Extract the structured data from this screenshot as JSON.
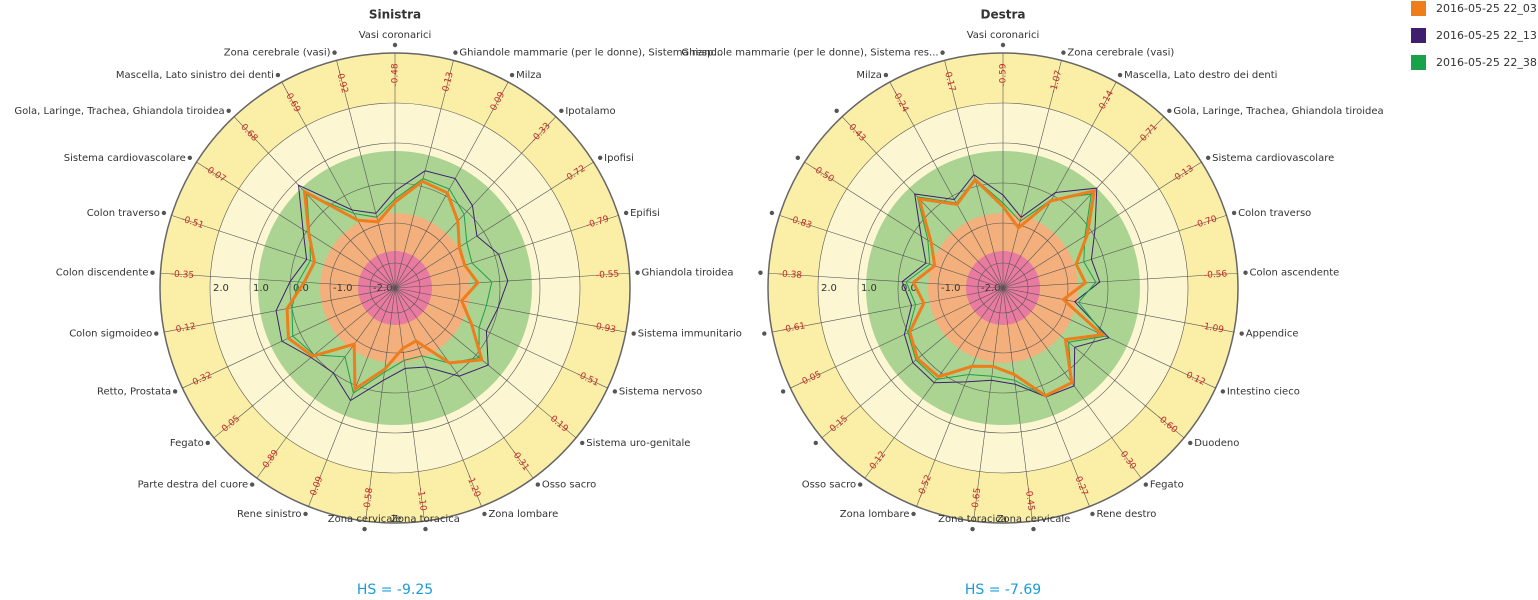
{
  "chart_data": [
    {
      "type": "radar",
      "title": "Sinistra",
      "annotation": "HS = -9.25",
      "categories": [
        "Vasi coronarici",
        "Ghiandole mammarie (per le donne), Sistema resp...",
        "Milza",
        "Ipotalamo",
        "Ipofisi",
        "Epifisi",
        "Ghiandola tiroidea",
        "Sistema immunitario",
        "Sistema nervoso",
        "Sistema uro-genitale",
        "Osso sacro",
        "Zona lombare",
        "Zona toracica",
        "Zona cervicale",
        "Rene sinistro",
        "Parte destra del cuore",
        "Fegato",
        "Retto, Prostata",
        "Colon sigmoideo",
        "Colon discendente",
        "Colon traverso",
        "Sistema cardiovascolare",
        "Gola, Laringe, Trachea, Ghiandola tiroidea",
        "Mascella, Lato sinistro dei denti",
        "Zona cerebrale (vasi)"
      ],
      "rlim": [
        -2.625,
        3.25
      ],
      "rticks": [
        {
          "value": 2,
          "label": "2.0"
        },
        {
          "value": 1,
          "label": "1.0"
        },
        {
          "value": 0,
          "label": "0.0"
        },
        {
          "value": -1,
          "label": "-1.0"
        },
        {
          "value": -2,
          "label": "-2.0"
        }
      ],
      "bands": [
        {
          "from": 2,
          "to": 3.25,
          "color": "#fbeea6"
        },
        {
          "from": 0.8,
          "to": 2,
          "color": "#fcf7d2"
        },
        {
          "from": -0.75,
          "to": 0.8,
          "color": "#abd392"
        },
        {
          "from": -1.7,
          "to": -0.75,
          "color": "#f4b07c"
        },
        {
          "from": -2.625,
          "to": -1.7,
          "color": "#e97aa0"
        }
      ],
      "series": [
        {
          "name": "2016-05-25 22_03",
          "color": "#ee7d1c",
          "values": [
            -0.48,
            0.13,
            0.09,
            -0.33,
            -0.72,
            -0.79,
            -0.55,
            -0.93,
            -0.51,
            0.19,
            -0.31,
            -1.2,
            -1.1,
            -0.58,
            0.09,
            -0.89,
            0.05,
            0.32,
            0.12,
            -0.35,
            -0.51,
            -0.07,
            0.68,
            -0.69,
            -0.92
          ],
          "value_labels": [
            "-0.48",
            "0.13",
            "0.09",
            "-0.33",
            "-0.72",
            "-0.79",
            "-0.55",
            "-0.93",
            "-0.51",
            "0.19",
            "-0.31",
            "-1.20",
            "-1.10",
            "-0.58",
            "0.09",
            "-0.89",
            "0.05",
            "0.32",
            "0.12",
            "-0.35",
            "-0.51",
            "-0.07",
            "0.68",
            "-0.69",
            "-0.92"
          ]
        },
        {
          "name": "2016-05-25 22_13",
          "color": "#3d1f6e",
          "values": [
            -0.2,
            0.4,
            0.5,
            0.2,
            -0.2,
            0.1,
            0.2,
            0.0,
            -0.1,
            0.4,
            0.1,
            -0.5,
            -0.6,
            -0.3,
            0.4,
            0.0,
            0.1,
            0.5,
            0.4,
            0.0,
            -0.3,
            0.1,
            0.9,
            -0.4,
            -0.7
          ]
        },
        {
          "name": "2016-05-25 22_38",
          "color": "#1aa24a",
          "values": [
            -0.4,
            0.2,
            0.2,
            -0.1,
            -0.5,
            -0.6,
            -0.2,
            -0.3,
            -0.3,
            0.1,
            -0.3,
            -0.8,
            -0.8,
            -0.5,
            0.2,
            -0.5,
            0.0,
            0.2,
            0.0,
            -0.2,
            -0.4,
            -0.1,
            0.6,
            -0.5,
            -0.8
          ]
        }
      ]
    },
    {
      "type": "radar",
      "title": "Destra",
      "annotation": "HS = -7.69",
      "categories": [
        "Vasi coronarici",
        "Zona cerebrale (vasi)",
        "Mascella, Lato destro dei denti",
        "Gola, Laringe, Trachea, Ghiandola tiroidea",
        "Sistema cardiovascolare",
        "Colon traverso",
        "Colon ascendente",
        "Appendice",
        "Intestino cieco",
        "Duodeno",
        "Fegato",
        "Rene destro",
        "Zona cervicale",
        "Zona toracica",
        "Zona lombare",
        "Osso sacro",
        null,
        null,
        null,
        null,
        null,
        null,
        null,
        "Milza",
        "Ghiandole mammarie (per le donne), Sistema res..."
      ],
      "rlim": [
        -2.625,
        3.25
      ],
      "rticks": [
        {
          "value": 2,
          "label": "2.0"
        },
        {
          "value": 1,
          "label": "1.0"
        },
        {
          "value": 0,
          "label": "0.0"
        },
        {
          "value": -1,
          "label": "-1.0"
        },
        {
          "value": -2,
          "label": "-2.0"
        }
      ],
      "bands": [
        {
          "from": 2,
          "to": 3.25,
          "color": "#fbeea6"
        },
        {
          "from": 0.8,
          "to": 2,
          "color": "#fcf7d2"
        },
        {
          "from": -0.75,
          "to": 0.8,
          "color": "#abd392"
        },
        {
          "from": -1.7,
          "to": -0.75,
          "color": "#f4b07c"
        },
        {
          "from": -2.625,
          "to": -1.7,
          "color": "#e97aa0"
        }
      ],
      "series": [
        {
          "color": "#ee7d1c",
          "values": [
            -0.59,
            -1.07,
            -0.14,
            0.71,
            -0.13,
            -0.7,
            -0.56,
            -1.09,
            0.12,
            -0.6,
            0.3,
            0.27,
            -0.45,
            -0.65,
            -0.52,
            0.12,
            0.15,
            -0.05,
            -0.61,
            -0.38,
            -0.83,
            -0.5,
            0.43,
            -0.24,
            0.17
          ],
          "value_labels": [
            "-0.59",
            "-1.07",
            "-0.14",
            "0.71",
            "-0.13",
            "-0.70",
            "-0.56",
            "-1.09",
            "0.12",
            "-0.60",
            "0.30",
            "0.27",
            "-0.45",
            "-0.65",
            "-0.52",
            "0.12",
            "0.15",
            "-0.05",
            "-0.61",
            "-0.38",
            "-0.83",
            "-0.50",
            "0.43",
            "-0.24",
            "0.17"
          ]
        },
        {
          "color": "#3d1f6e",
          "values": [
            -0.3,
            -0.8,
            0.1,
            0.8,
            0.1,
            -0.3,
            -0.2,
            -0.8,
            0.3,
            -0.3,
            0.4,
            0.3,
            -0.2,
            -0.3,
            -0.1,
            0.3,
            0.3,
            0.1,
            -0.3,
            -0.1,
            -0.6,
            -0.2,
            0.6,
            -0.1,
            0.3
          ]
        },
        {
          "color": "#1aa24a",
          "values": [
            -0.5,
            -0.9,
            -0.1,
            0.6,
            -0.2,
            -0.5,
            -0.3,
            -0.7,
            0.2,
            -0.5,
            0.3,
            0.3,
            -0.3,
            -0.4,
            -0.3,
            0.2,
            0.2,
            0.0,
            -0.4,
            -0.2,
            -0.7,
            -0.4,
            0.5,
            -0.2,
            0.2
          ]
        }
      ]
    }
  ]
}
